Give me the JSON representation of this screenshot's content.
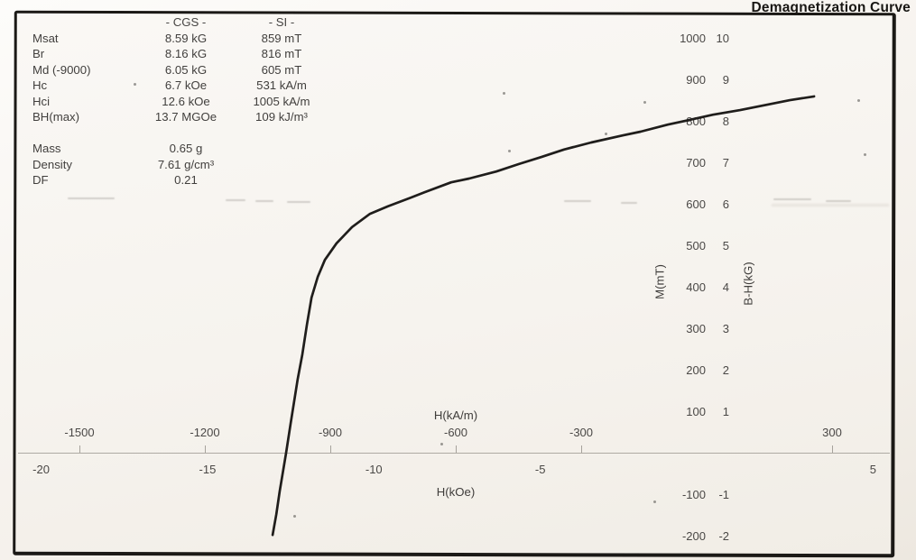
{
  "title": "Demagnetization Curve",
  "properties": {
    "headers": {
      "cgs": "- CGS -",
      "si": "- SI -"
    },
    "rows": [
      {
        "label": "Msat",
        "cgs": "8.59 kG",
        "si": "859 mT"
      },
      {
        "label": "Br",
        "cgs": "8.16 kG",
        "si": "816 mT"
      },
      {
        "label": "Md (-9000)",
        "cgs": "6.05 kG",
        "si": "605 mT"
      },
      {
        "label": "Hc",
        "cgs": "6.7 kOe",
        "si": "531 kA/m"
      },
      {
        "label": "Hci",
        "cgs": "12.6 kOe",
        "si": "1005 kA/m"
      },
      {
        "label": "BH(max)",
        "cgs": "13.7 MGOe",
        "si": "109 kJ/m³"
      }
    ],
    "sample_rows": [
      {
        "label": "Mass",
        "value": "0.65 g"
      },
      {
        "label": "Density",
        "value": "7.61 g/cm³"
      },
      {
        "label": "DF",
        "value": "0.21"
      }
    ]
  },
  "chart_data": {
    "type": "line",
    "title": "Demagnetization Curve",
    "grid": false,
    "x_axis_primary": {
      "label": "H(kA/m)",
      "unit": "kA/m",
      "ticks": [
        -1500,
        -1200,
        -900,
        -600,
        -300,
        300
      ],
      "range": [
        -1660,
        440
      ]
    },
    "x_axis_secondary": {
      "label": "H(kOe)",
      "unit": "kOe",
      "ticks": [
        -20,
        -15,
        -10,
        -5,
        5
      ]
    },
    "y_axis_primary": {
      "label": "M(mT)",
      "unit": "mT",
      "ticks": [
        1000,
        900,
        800,
        700,
        600,
        500,
        400,
        300,
        200,
        100,
        -100,
        -200
      ],
      "range": [
        -240,
        1080
      ]
    },
    "y_axis_secondary": {
      "label": "B-H(kG)",
      "unit": "kG",
      "ticks": [
        10,
        9,
        8,
        7,
        6,
        5,
        4,
        3,
        2,
        1,
        -1,
        -2
      ]
    },
    "series": [
      {
        "name": "demagnetization-curve",
        "color": "#1f1d1b",
        "points_H_kAm_M_mT": [
          [
            -1038,
            -196
          ],
          [
            -1029,
            -146
          ],
          [
            -1021,
            -91
          ],
          [
            -1006,
            0
          ],
          [
            -995,
            72
          ],
          [
            -978,
            180
          ],
          [
            -967,
            239
          ],
          [
            -956,
            311
          ],
          [
            -945,
            376
          ],
          [
            -930,
            426
          ],
          [
            -913,
            467
          ],
          [
            -885,
            507
          ],
          [
            -848,
            546
          ],
          [
            -805,
            578
          ],
          [
            -762,
            596
          ],
          [
            -708,
            617
          ],
          [
            -675,
            630
          ],
          [
            -611,
            654
          ],
          [
            -568,
            663
          ],
          [
            -503,
            680
          ],
          [
            -449,
            698
          ],
          [
            -395,
            715
          ],
          [
            -341,
            733
          ],
          [
            -276,
            750
          ],
          [
            -201,
            767
          ],
          [
            -158,
            776
          ],
          [
            -93,
            793
          ],
          [
            -43,
            804
          ],
          [
            15,
            817
          ],
          [
            80,
            828
          ],
          [
            145,
            841
          ],
          [
            199,
            852
          ],
          [
            257,
            861
          ]
        ]
      }
    ],
    "key_values": {
      "Hci_kAm": -1005,
      "Br_mT": 816,
      "Msat_mT": 859
    }
  }
}
